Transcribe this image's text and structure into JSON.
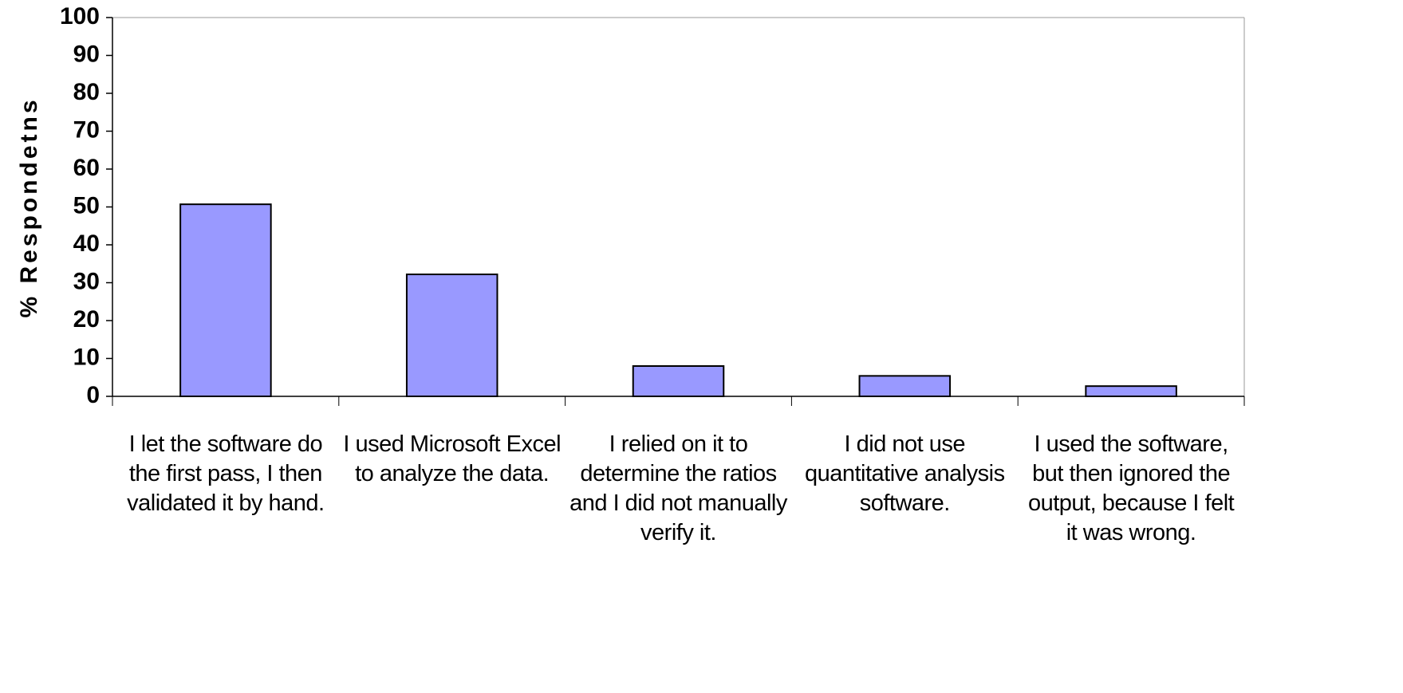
{
  "chart_data": {
    "type": "bar",
    "y_label": "% Respondetns",
    "categories": [
      "I let the software do the first pass, I then validated it by hand.",
      "I used Microsoft Excel to analyze the data.",
      "I relied on it to determine the ratios and I did not manually verify it.",
      "I did not use quantitative analysis software.",
      "I used the software, but then ignored the output, because I felt it was wrong."
    ],
    "values": [
      50.7,
      32.2,
      8,
      5.4,
      2.7
    ],
    "color": "#9999ff",
    "ylim": [
      0,
      100
    ],
    "yticks": [
      0,
      10,
      20,
      30,
      40,
      50,
      60,
      70,
      80,
      90,
      100
    ],
    "grid": false
  }
}
